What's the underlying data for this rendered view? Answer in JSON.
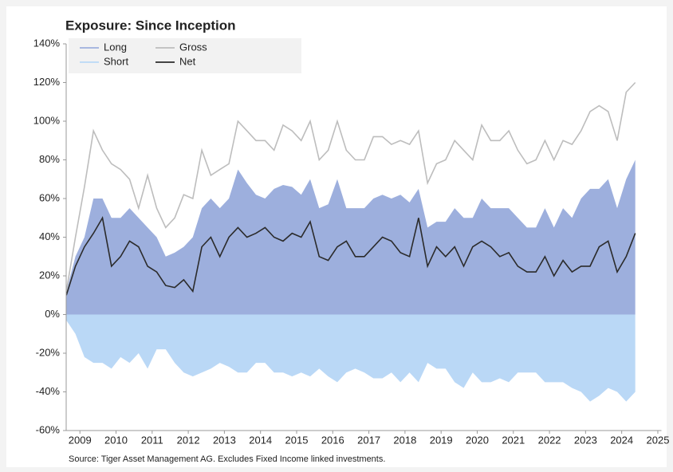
{
  "chart_data": {
    "type": "area",
    "title": "Exposure: Since Inception",
    "source": "Source: Tiger Asset Management AG. Excludes Fixed Income linked investments.",
    "x": [
      2008.625,
      2008.875,
      2009.125,
      2009.375,
      2009.625,
      2009.875,
      2010.125,
      2010.375,
      2010.625,
      2010.875,
      2011.125,
      2011.375,
      2011.625,
      2011.875,
      2012.125,
      2012.375,
      2012.625,
      2012.875,
      2013.125,
      2013.375,
      2013.625,
      2013.875,
      2014.125,
      2014.375,
      2014.625,
      2014.875,
      2015.125,
      2015.375,
      2015.625,
      2015.875,
      2016.125,
      2016.375,
      2016.625,
      2016.875,
      2017.125,
      2017.375,
      2017.625,
      2017.875,
      2018.125,
      2018.375,
      2018.625,
      2018.875,
      2019.125,
      2019.375,
      2019.625,
      2019.875,
      2020.125,
      2020.375,
      2020.625,
      2020.875,
      2021.125,
      2021.375,
      2021.625,
      2021.875,
      2022.125,
      2022.375,
      2022.625,
      2022.875,
      2023.125,
      2023.375,
      2023.625,
      2023.875,
      2024.125,
      2024.375
    ],
    "series": [
      {
        "name": "Long",
        "color": "#9dafdd",
        "values": [
          12,
          30,
          40,
          60,
          60,
          50,
          50,
          55,
          50,
          45,
          40,
          30,
          32,
          35,
          40,
          55,
          60,
          55,
          60,
          75,
          68,
          62,
          60,
          65,
          67,
          66,
          62,
          70,
          55,
          57,
          70,
          55,
          55,
          55,
          60,
          62,
          60,
          62,
          58,
          65,
          45,
          48,
          48,
          55,
          50,
          50,
          60,
          55,
          55,
          55,
          50,
          45,
          45,
          55,
          45,
          55,
          50,
          60,
          65,
          65,
          70,
          55,
          70,
          80
        ]
      },
      {
        "name": "Short",
        "color": "#bad8f6",
        "values": [
          -3,
          -10,
          -22,
          -25,
          -25,
          -28,
          -22,
          -25,
          -20,
          -28,
          -18,
          -18,
          -25,
          -30,
          -32,
          -30,
          -28,
          -25,
          -27,
          -30,
          -30,
          -25,
          -25,
          -30,
          -30,
          -32,
          -30,
          -32,
          -28,
          -32,
          -35,
          -30,
          -28,
          -30,
          -33,
          -33,
          -30,
          -35,
          -30,
          -35,
          -25,
          -28,
          -28,
          -35,
          -38,
          -30,
          -35,
          -35,
          -33,
          -35,
          -30,
          -30,
          -30,
          -35,
          -35,
          -35,
          -38,
          -40,
          -45,
          -42,
          -38,
          -40,
          -45,
          -40
        ]
      },
      {
        "name": "Gross",
        "color": "#bdbdbd",
        "values": [
          12,
          40,
          66,
          95,
          85,
          78,
          75,
          70,
          55,
          72,
          55,
          45,
          50,
          62,
          60,
          85,
          72,
          75,
          78,
          100,
          95,
          90,
          90,
          85,
          98,
          95,
          90,
          100,
          80,
          85,
          100,
          85,
          80,
          80,
          92,
          92,
          88,
          90,
          88,
          95,
          68,
          78,
          80,
          90,
          85,
          80,
          98,
          90,
          90,
          95,
          85,
          78,
          80,
          90,
          80,
          90,
          88,
          95,
          105,
          108,
          105,
          90,
          115,
          120
        ]
      },
      {
        "name": "Net",
        "color": "#2b2b2b",
        "values": [
          10,
          25,
          35,
          42,
          50,
          25,
          30,
          38,
          35,
          25,
          22,
          15,
          14,
          18,
          12,
          35,
          40,
          30,
          40,
          45,
          40,
          42,
          45,
          40,
          38,
          42,
          40,
          48,
          30,
          28,
          35,
          38,
          30,
          30,
          35,
          40,
          38,
          32,
          30,
          50,
          25,
          35,
          30,
          35,
          25,
          35,
          38,
          35,
          30,
          32,
          25,
          22,
          22,
          30,
          20,
          28,
          22,
          25,
          25,
          35,
          38,
          22,
          30,
          42
        ]
      }
    ],
    "xlim": [
      2008.62,
      2025.1
    ],
    "xticks": [
      2009,
      2010,
      2011,
      2012,
      2013,
      2014,
      2015,
      2016,
      2017,
      2018,
      2019,
      2020,
      2021,
      2022,
      2023,
      2024,
      2025
    ],
    "ylim": [
      -60,
      140
    ],
    "yticks": [
      {
        "value": -60,
        "label": "-60%"
      },
      {
        "value": -40,
        "label": "-40%"
      },
      {
        "value": -20,
        "label": "-20%"
      },
      {
        "value": 0,
        "label": "0%"
      },
      {
        "value": 20,
        "label": "20%"
      },
      {
        "value": 40,
        "label": "40%"
      },
      {
        "value": 60,
        "label": "60%"
      },
      {
        "value": 80,
        "label": "80%"
      },
      {
        "value": 100,
        "label": "100%"
      },
      {
        "value": 120,
        "label": "120%"
      },
      {
        "value": 140,
        "label": "140%"
      }
    ],
    "legend": "top-left"
  }
}
